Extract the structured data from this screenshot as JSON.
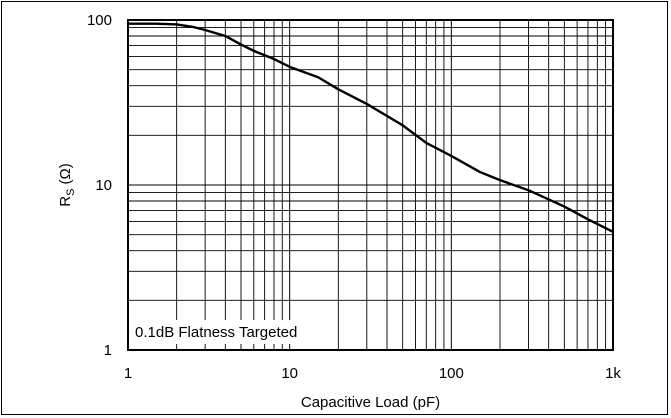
{
  "chart_data": {
    "type": "line",
    "xlabel": "Capacitive Load (pF)",
    "ylabel_main": "R",
    "ylabel_sub": "S",
    "ylabel_unit": "(Ω)",
    "x_scale": "log",
    "y_scale": "log",
    "xlim": [
      1,
      1000
    ],
    "ylim": [
      1,
      100
    ],
    "grid": true,
    "x_ticks": [
      {
        "value": 1,
        "label": "1"
      },
      {
        "value": 10,
        "label": "10"
      },
      {
        "value": 100,
        "label": "100"
      },
      {
        "value": 1000,
        "label": "1k"
      }
    ],
    "y_ticks": [
      {
        "value": 1,
        "label": "1"
      },
      {
        "value": 10,
        "label": "10"
      },
      {
        "value": 100,
        "label": "100"
      }
    ],
    "annotation": "0.1dB Flatness Targeted",
    "series": [
      {
        "color": "#000000",
        "x": [
          1,
          1.5,
          2,
          2.5,
          3,
          4,
          5,
          6,
          8,
          10,
          15,
          20,
          30,
          50,
          70,
          100,
          150,
          200,
          300,
          500,
          700,
          1000
        ],
        "y": [
          95,
          95,
          94,
          91,
          87,
          80,
          71,
          65,
          58,
          52,
          45,
          38,
          31,
          23,
          18,
          15,
          12,
          10.7,
          9.3,
          7.4,
          6.2,
          5.2
        ]
      }
    ]
  }
}
